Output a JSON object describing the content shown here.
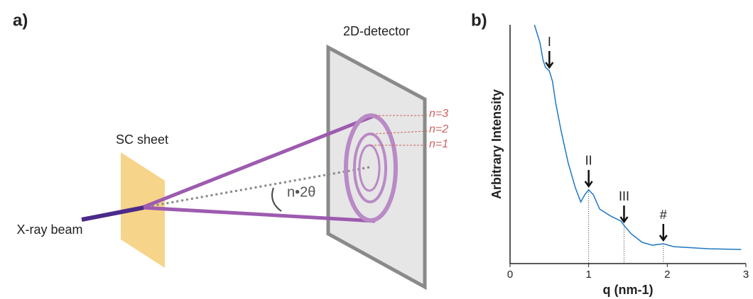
{
  "diagram": {
    "panel_label": "a)",
    "detector_label": "2D-detector",
    "sheet_label": "SC sheet",
    "beam_label": "X-ray beam",
    "orders": [
      "n=3",
      "n=2",
      "n=1"
    ],
    "angle_label": "n•2θ"
  },
  "chart_data": {
    "type": "line",
    "panel_label": "b)",
    "x_label": "q (nm-1)",
    "y_label": "Arbitrary Intensity",
    "x": [
      0.31,
      0.38,
      0.42,
      0.45,
      0.5,
      0.54,
      0.58,
      0.65,
      0.74,
      0.83,
      0.9,
      0.95,
      1.0,
      1.06,
      1.14,
      1.28,
      1.41,
      1.45,
      1.54,
      1.68,
      1.81,
      1.95,
      2.08,
      2.53,
      2.94
    ],
    "series": [
      {
        "color": "#1f77c4",
        "values": [
          100,
          92.6,
          85.2,
          82.2,
          80.7,
          76.3,
          67.4,
          55.5,
          42.1,
          31.8,
          25.8,
          28.8,
          30.9,
          28.8,
          22.8,
          19.9,
          17.8,
          16.0,
          12.5,
          8.9,
          7.7,
          8.3,
          7.1,
          6.2,
          5.9
        ]
      }
    ],
    "xlim": [
      0,
      3
    ],
    "ylim": [
      0,
      100
    ],
    "xticks": [
      0,
      1,
      2,
      3
    ],
    "annotations": [
      {
        "text": "I",
        "x": 0.5,
        "y": 80.7
      },
      {
        "text": "II",
        "x": 1.0,
        "y": 30.9
      },
      {
        "text": "III",
        "x": 1.45,
        "y": 16.0
      },
      {
        "text": "#",
        "x": 1.95,
        "y": 8.3
      }
    ]
  }
}
